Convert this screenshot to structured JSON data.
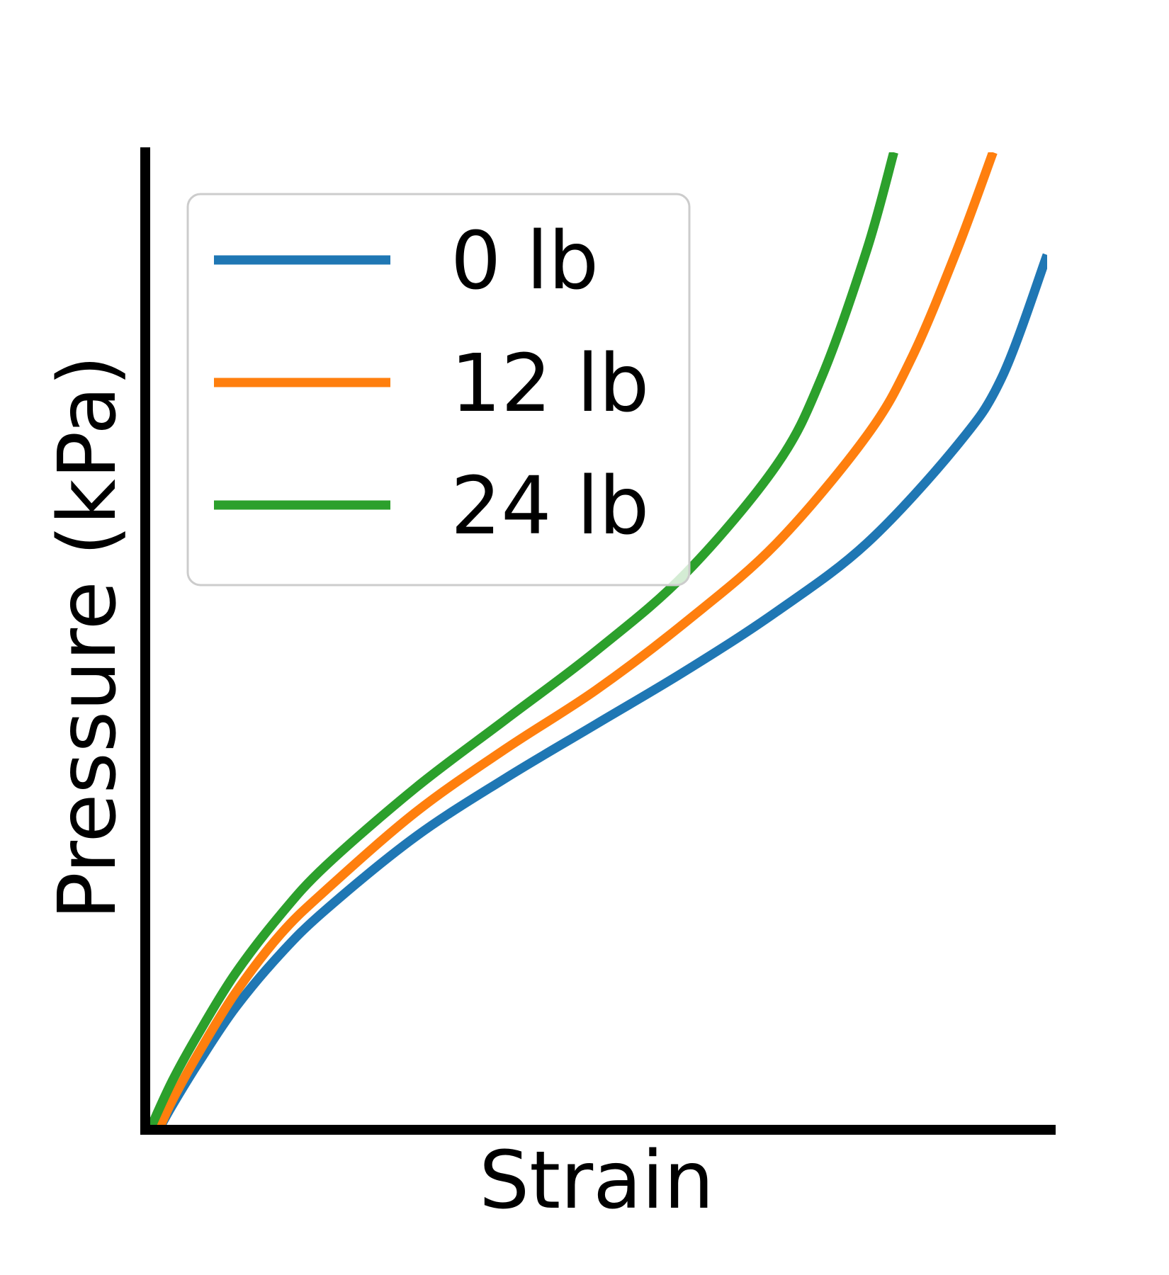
{
  "chart_data": {
    "type": "line",
    "title": "",
    "xlabel": "Strain",
    "ylabel": "Pressure (kPa)",
    "xlim": [
      0,
      1
    ],
    "ylim": [
      0,
      1
    ],
    "x_ticks_shown": false,
    "y_ticks_shown": false,
    "grid": false,
    "legend_position": "top-left",
    "series": [
      {
        "name": "0 lb",
        "color": "#1f77b4",
        "x": [
          0.015,
          0.03,
          0.06,
          0.1,
          0.15,
          0.2,
          0.3,
          0.4,
          0.5,
          0.6,
          0.7,
          0.8,
          0.9,
          0.95,
          1.0
        ],
        "y": [
          0.0,
          0.025,
          0.07,
          0.125,
          0.18,
          0.225,
          0.3,
          0.36,
          0.415,
          0.47,
          0.53,
          0.6,
          0.7,
          0.77,
          0.895
        ]
      },
      {
        "name": "12 lb",
        "color": "#ff7f0e",
        "x": [
          0.015,
          0.03,
          0.06,
          0.1,
          0.15,
          0.2,
          0.3,
          0.4,
          0.5,
          0.6,
          0.7,
          0.8,
          0.85,
          0.9,
          0.94
        ],
        "y": [
          0.0,
          0.03,
          0.08,
          0.14,
          0.2,
          0.245,
          0.325,
          0.39,
          0.45,
          0.52,
          0.6,
          0.71,
          0.79,
          0.9,
          1.0
        ]
      },
      {
        "name": "24 lb",
        "color": "#2ca02c",
        "x": [
          0.005,
          0.03,
          0.06,
          0.1,
          0.15,
          0.2,
          0.3,
          0.4,
          0.5,
          0.6,
          0.7,
          0.75,
          0.8,
          0.83
        ],
        "y": [
          0.0,
          0.05,
          0.1,
          0.16,
          0.22,
          0.27,
          0.35,
          0.42,
          0.49,
          0.57,
          0.68,
          0.77,
          0.9,
          1.0
        ]
      }
    ]
  }
}
